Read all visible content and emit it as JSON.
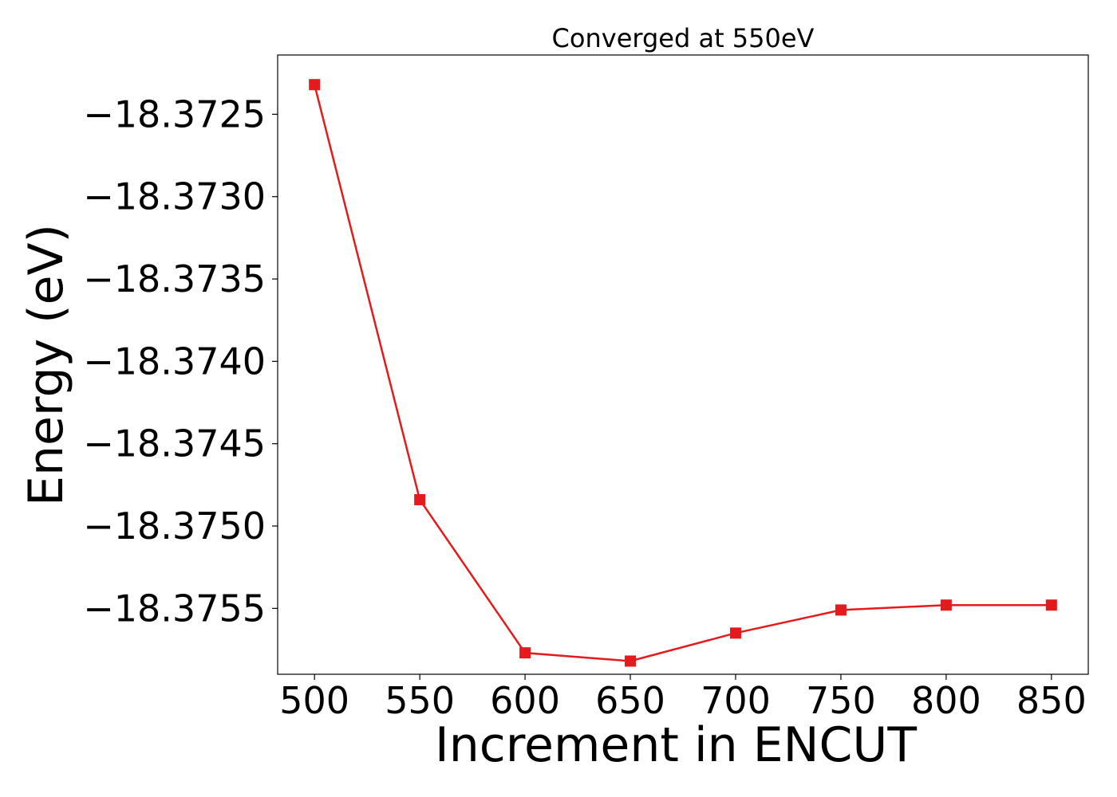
{
  "chart_data": {
    "type": "line",
    "title": "Converged at 550eV",
    "xlabel": "Increment in ENCUT",
    "ylabel": "Energy (eV)",
    "x": [
      500,
      550,
      600,
      650,
      700,
      750,
      800,
      850
    ],
    "series": [
      {
        "values": [
          -18.37232,
          -18.37484,
          -18.37577,
          -18.37582,
          -18.37565,
          -18.37551,
          -18.37548,
          -18.37548
        ],
        "color": "#e41a1c",
        "marker": "square"
      }
    ],
    "xticks": [
      500,
      550,
      600,
      650,
      700,
      750,
      800,
      850
    ],
    "xtick_labels": [
      "500",
      "550",
      "600",
      "650",
      "700",
      "750",
      "800",
      "850"
    ],
    "yticks": [
      -18.3725,
      -18.373,
      -18.3735,
      -18.374,
      -18.3745,
      -18.375,
      -18.3755
    ],
    "ytick_labels": [
      "−18.3725",
      "−18.3730",
      "−18.3735",
      "−18.3740",
      "−18.3745",
      "−18.3750",
      "−18.3755"
    ],
    "xlim": [
      482.5,
      867.5
    ],
    "ylim": [
      -18.3759,
      -18.37214
    ],
    "grid": false,
    "legend": false
  }
}
